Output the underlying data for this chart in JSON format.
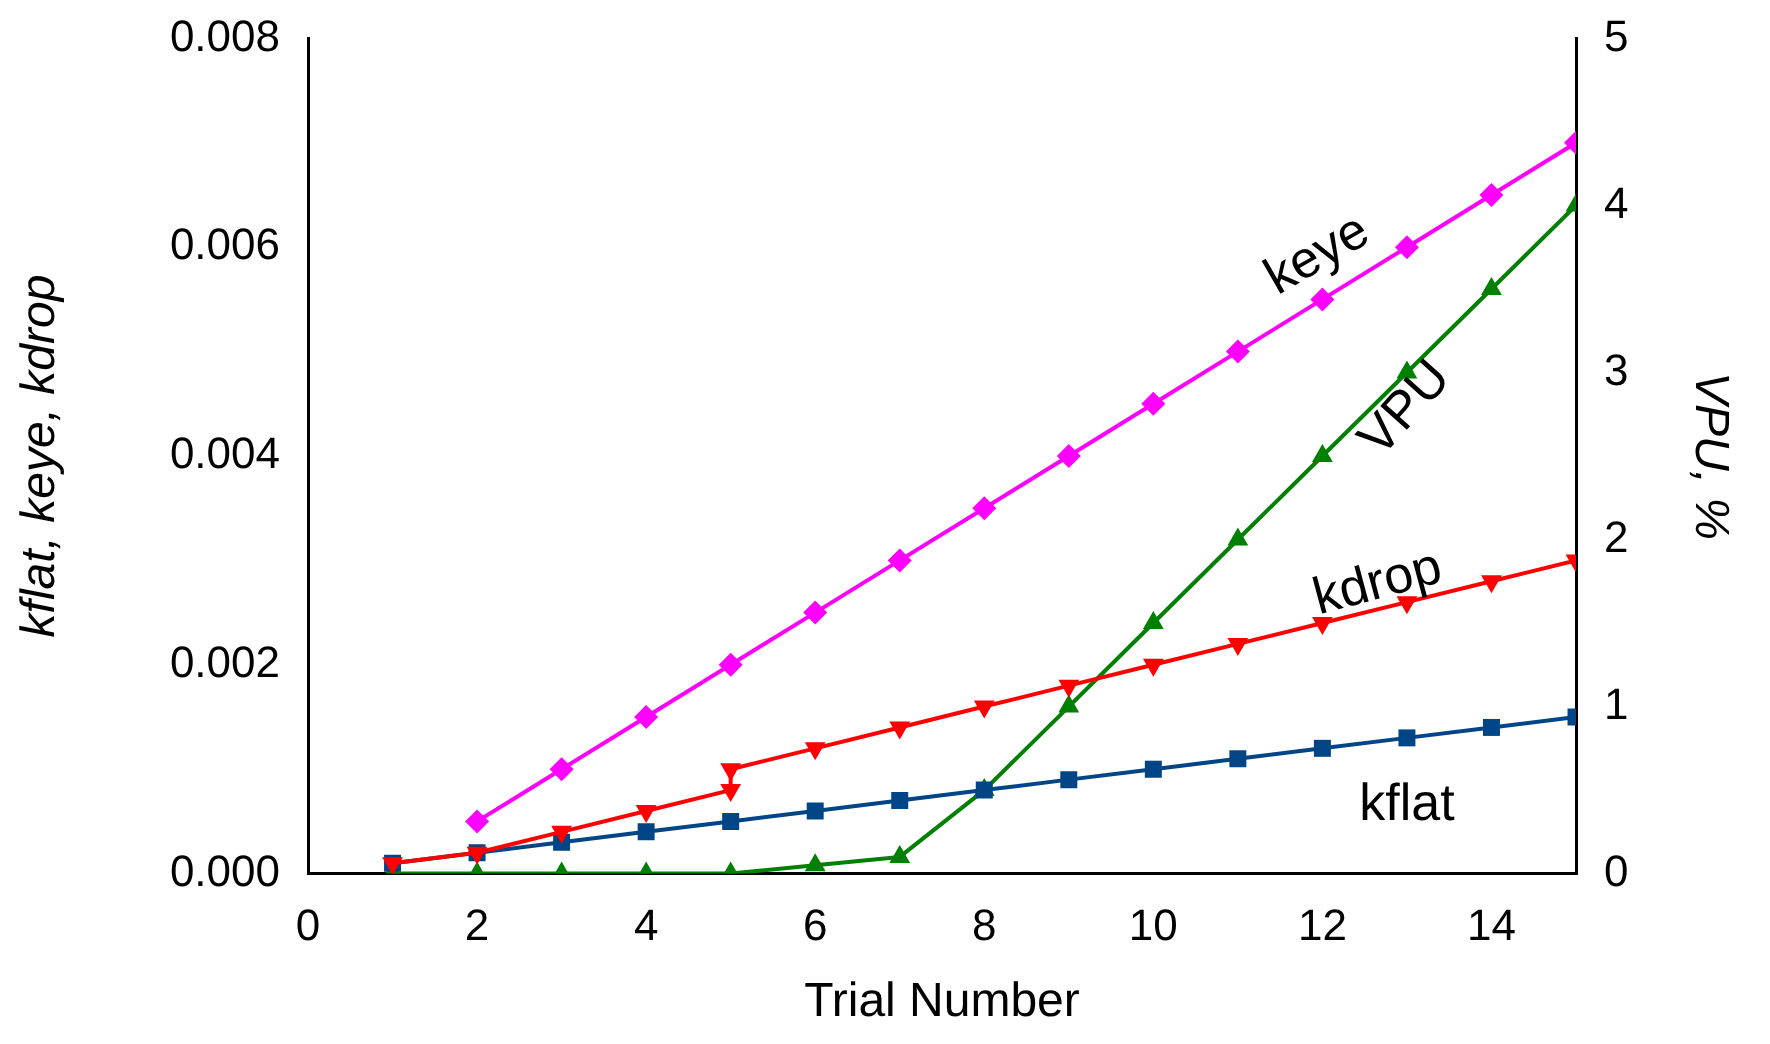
{
  "chart_data": {
    "type": "line",
    "xlabel": "Trial Number",
    "ylabel": "kflat, keye, kdrop",
    "y2label": "VPU, %",
    "xlim": [
      0,
      15
    ],
    "xticks": [
      0,
      2,
      4,
      6,
      8,
      10,
      12,
      14
    ],
    "ylim": [
      0,
      0.008
    ],
    "yticks": [
      {
        "value": 0,
        "label": "0.000"
      },
      {
        "value": 0.002,
        "label": "0.002"
      },
      {
        "value": 0.004,
        "label": "0.004"
      },
      {
        "value": 0.006,
        "label": "0.006"
      },
      {
        "value": 0.008,
        "label": "0.008"
      }
    ],
    "y2lim": [
      0,
      5
    ],
    "y2ticks": [
      0,
      1,
      2,
      3,
      4,
      5
    ],
    "grid": false,
    "legend": false,
    "line_style": "solid",
    "series": [
      {
        "name": "keye",
        "color": "#ff00ff",
        "marker": "diamond",
        "x": [
          2,
          3,
          4,
          5,
          6,
          7,
          8,
          9,
          10,
          11,
          12,
          13,
          14,
          15
        ],
        "values": [
          0.0005,
          0.001,
          0.0015,
          0.002,
          0.0025,
          0.003,
          0.0035,
          0.004,
          0.0045,
          0.005,
          0.0055,
          0.006,
          0.0065,
          0.007
        ]
      },
      {
        "name": "kdrop",
        "color": "#ff0000",
        "marker": "triangle-down",
        "x": [
          1,
          2,
          3,
          4,
          5,
          5,
          6,
          7,
          8,
          9,
          10,
          11,
          12,
          13,
          14,
          15
        ],
        "values": [
          0.0001,
          0.0002,
          0.0004,
          0.0006,
          0.0008,
          0.001,
          0.0012,
          0.0014,
          0.0016,
          0.0018,
          0.002,
          0.0022,
          0.0024,
          0.0026,
          0.0028,
          0.003
        ]
      },
      {
        "name": "kflat",
        "color": "#004586",
        "marker": "square",
        "x": [
          1,
          2,
          3,
          4,
          5,
          6,
          7,
          8,
          9,
          10,
          11,
          12,
          13,
          14,
          15
        ],
        "values": [
          0.0001,
          0.0002,
          0.0003,
          0.0004,
          0.0005,
          0.0006,
          0.0007,
          0.0008,
          0.0009,
          0.001,
          0.0011,
          0.0012,
          0.0013,
          0.0014,
          0.0015
        ]
      },
      {
        "name": "VPU",
        "color": "#008000",
        "marker": "triangle",
        "axis": "y2",
        "x": [
          1,
          2,
          3,
          4,
          5,
          6,
          7,
          8,
          9,
          10,
          11,
          12,
          13,
          14,
          15
        ],
        "values": [
          0,
          0,
          0,
          0,
          0,
          0.05,
          0.1,
          0.5,
          1,
          1.5,
          2,
          2.5,
          3,
          3.5,
          4
        ]
      }
    ]
  }
}
